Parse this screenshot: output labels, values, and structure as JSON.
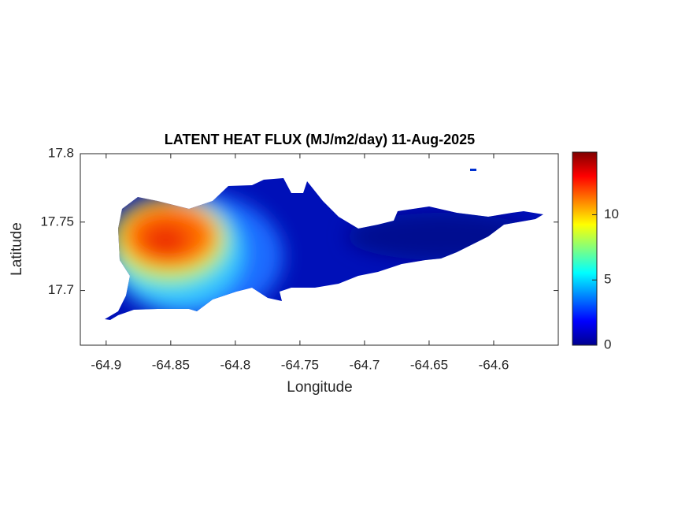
{
  "chart_data": {
    "type": "heatmap",
    "title": "LATENT HEAT FLUX (MJ/m2/day) 11-Aug-2025",
    "xlabel": "Longitude",
    "ylabel": "Latitude",
    "xlim": [
      -64.92,
      -64.55
    ],
    "xticks": [
      -64.9,
      -64.85,
      -64.8,
      -64.75,
      -64.7,
      -64.65,
      -64.6
    ],
    "ylim": [
      17.66,
      17.8
    ],
    "yticks": [
      17.7,
      17.75,
      17.8
    ],
    "colorbar": {
      "lim": [
        0,
        14.8
      ],
      "ticks": [
        0,
        5,
        10
      ]
    }
  }
}
